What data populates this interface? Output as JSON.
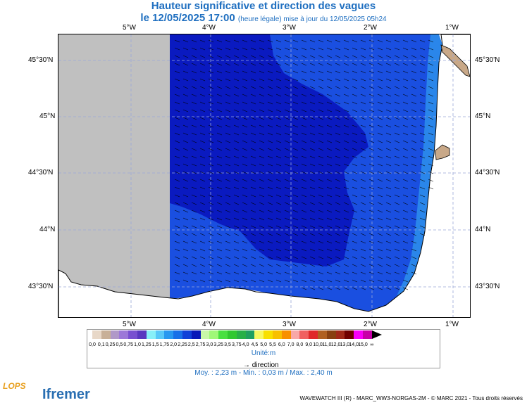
{
  "title": "Hauteur significative et direction des vagues",
  "subtitle_main": "le 12/05/2025 17:00",
  "subtitle_note": "(heure légale) mise à jour du 12/05/2025 05h24",
  "lon_labels": [
    "5°W",
    "4°W",
    "3°W",
    "2°W",
    "1°W"
  ],
  "lat_labels": [
    "45°30'N",
    "45°N",
    "44°30'N",
    "44°N",
    "43°30'N"
  ],
  "colorbar": {
    "labels": [
      "0,0",
      "0,1",
      "0,25",
      "0,5",
      "0,75",
      "1,0",
      "1,25",
      "1,5",
      "1,75",
      "2,0",
      "2,25",
      "2,5",
      "2,75",
      "3,0",
      "3,25",
      "3,5",
      "3,75",
      "4,0",
      "4,5",
      "5,0",
      "5,5",
      "6,0",
      "7,0",
      "8,0",
      "9,0",
      "10,0",
      "11,0",
      "12,0",
      "13,0",
      "14,0",
      "15,0",
      "∞"
    ],
    "colors": [
      "#e8d8c8",
      "#c8b098",
      "#b098c8",
      "#9c78d8",
      "#7850d0",
      "#5838c0",
      "#88f0f8",
      "#58c8f8",
      "#2898f0",
      "#1870e8",
      "#1040d8",
      "#0818b8",
      "#c8f8a8",
      "#a0f878",
      "#48e040",
      "#30c830",
      "#28b048",
      "#20a060",
      "#f8f860",
      "#f8e000",
      "#f8c000",
      "#f89000",
      "#f8a8a8",
      "#f06060",
      "#e02828",
      "#b06020",
      "#884010",
      "#a02818",
      "#700000",
      "#f800f8",
      "#c800a8"
    ],
    "unit": "Unité:m"
  },
  "direction_label": "→ direction",
  "stats": "Moy. : 2,23 m   -   Min. : 0,03 m / Max. : 2,40 m",
  "credit": "WAVEWATCH III (R) - MARC_WW3-NORGAS-2M - © MARC 2021 - Tous droits réservés",
  "logos": {
    "lops": "LOPS",
    "ifremer": "Ifremer"
  }
}
